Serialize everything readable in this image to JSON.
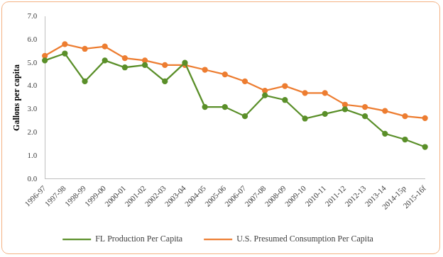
{
  "chart_data": {
    "type": "line",
    "y_label": "Gallons per capita",
    "categories": [
      "1996-97",
      "1997-98",
      "1998-99",
      "1999-00",
      "2000-01",
      "2001-02",
      "2002-03",
      "2003-04",
      "2004-05",
      "2005-06",
      "2006-07",
      "2007-08",
      "2008-09",
      "2009-10",
      "2010-11",
      "2011-12",
      "2012-13",
      "2013-14",
      "2014-15p",
      "2015-16f"
    ],
    "series": [
      {
        "name": "FL Production Per Capita",
        "color": "#5a8f29",
        "marker": "circle",
        "line_style": "solid",
        "values": [
          5.1,
          5.4,
          4.2,
          5.1,
          4.8,
          4.9,
          4.2,
          5.0,
          3.1,
          3.1,
          2.7,
          3.6,
          3.4,
          2.6,
          2.8,
          3.0,
          2.7,
          1.95,
          1.7,
          1.38
        ]
      },
      {
        "name": "U.S. Presumed Consumption Per Capita",
        "color": "#ed7d31",
        "marker": "circle",
        "line_style": "solid",
        "values": [
          5.3,
          5.8,
          5.6,
          5.7,
          5.2,
          5.1,
          4.9,
          4.9,
          4.7,
          4.5,
          4.2,
          3.8,
          4.0,
          3.7,
          3.7,
          3.2,
          3.1,
          2.93,
          2.7,
          2.62
        ]
      }
    ],
    "ylim": [
      0,
      7
    ],
    "yticks": [
      {
        "value": 0,
        "label": "0.0"
      },
      {
        "value": 1,
        "label": "1.0"
      },
      {
        "value": 2,
        "label": "2.0"
      },
      {
        "value": 3,
        "label": "3.0"
      },
      {
        "value": 4,
        "label": "4.0"
      },
      {
        "value": 5,
        "label": "5.0"
      },
      {
        "value": 6,
        "label": "6.0"
      },
      {
        "value": 7,
        "label": "7.0"
      }
    ],
    "grid": false,
    "legend": "bottom"
  }
}
